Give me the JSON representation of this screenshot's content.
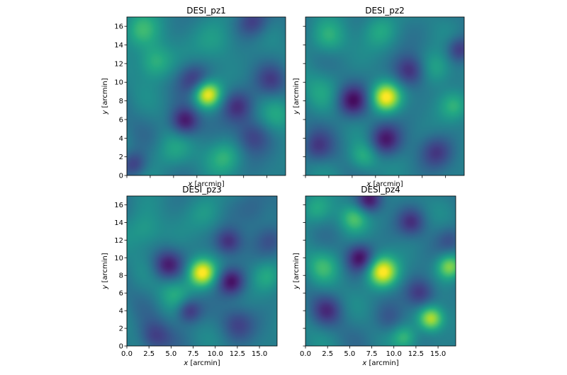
{
  "chart_data": [
    {
      "type": "heatmap",
      "title": "DESI_pz1",
      "xlabel_var": "x",
      "xlabel_unit": " [arcmin]",
      "ylabel_var": "y",
      "ylabel_unit": " [arcmin]",
      "xlim": [
        0,
        17
      ],
      "ylim": [
        0,
        17
      ],
      "xticks": [
        "0.0",
        "2.5",
        "5.0",
        "7.5",
        "10.0",
        "12.5",
        "15.0"
      ],
      "yticks": [
        "0",
        "2",
        "4",
        "6",
        "8",
        "10",
        "12",
        "14",
        "16"
      ],
      "show_xticklabels": false,
      "show_yticklabels": true,
      "colormap": "viridis",
      "features": [
        {
          "x": 8.6,
          "y": 8.7,
          "amp": 1.0,
          "w": 1.0
        },
        {
          "x": 6.2,
          "y": 5.8,
          "amp": -0.85,
          "w": 1.1
        },
        {
          "x": 11.8,
          "y": 7.4,
          "amp": -0.6,
          "w": 1.2
        },
        {
          "x": 13.5,
          "y": 4.2,
          "amp": -0.5,
          "w": 1.3
        },
        {
          "x": 16.2,
          "y": 6.5,
          "amp": 0.3,
          "w": 1.3
        },
        {
          "x": 7.2,
          "y": 10.3,
          "amp": -0.55,
          "w": 1.2
        },
        {
          "x": 3.0,
          "y": 12.2,
          "amp": 0.45,
          "w": 1.3
        },
        {
          "x": 0.8,
          "y": 1.2,
          "amp": -0.6,
          "w": 1.0
        },
        {
          "x": 1.5,
          "y": 15.5,
          "amp": 0.4,
          "w": 1.4
        },
        {
          "x": 13.5,
          "y": 16.5,
          "amp": -0.55,
          "w": 1.2
        },
        {
          "x": 5.0,
          "y": 2.5,
          "amp": 0.3,
          "w": 1.4
        },
        {
          "x": 10.5,
          "y": 2.0,
          "amp": 0.35,
          "w": 1.3
        },
        {
          "x": 15.5,
          "y": 10.2,
          "amp": -0.45,
          "w": 1.2
        },
        {
          "x": 9.5,
          "y": 14.5,
          "amp": 0.25,
          "w": 1.6
        }
      ]
    },
    {
      "type": "heatmap",
      "title": "DESI_pz2",
      "xlabel_var": "x",
      "xlabel_unit": " [arcmin]",
      "ylabel_var": "y",
      "ylabel_unit": " [arcmin]",
      "xlim": [
        0,
        17
      ],
      "ylim": [
        0,
        17
      ],
      "xticks": [
        "0.0",
        "2.5",
        "5.0",
        "7.5",
        "10.0",
        "12.5",
        "15.0"
      ],
      "yticks": [
        "0",
        "2",
        "4",
        "6",
        "8",
        "10",
        "12",
        "14",
        "16"
      ],
      "show_xticklabels": false,
      "show_yticklabels": false,
      "colormap": "viridis",
      "features": [
        {
          "x": 8.6,
          "y": 8.4,
          "amp": 1.0,
          "w": 1.1
        },
        {
          "x": 5.0,
          "y": 8.0,
          "amp": -0.8,
          "w": 1.2
        },
        {
          "x": 8.5,
          "y": 3.8,
          "amp": -0.75,
          "w": 1.2
        },
        {
          "x": 11.2,
          "y": 11.2,
          "amp": -0.7,
          "w": 1.2
        },
        {
          "x": 6.2,
          "y": 2.0,
          "amp": 0.4,
          "w": 1.1
        },
        {
          "x": 14.0,
          "y": 11.5,
          "amp": 0.35,
          "w": 1.3
        },
        {
          "x": 16.0,
          "y": 7.5,
          "amp": 0.35,
          "w": 1.1
        },
        {
          "x": 16.5,
          "y": 13.5,
          "amp": -0.6,
          "w": 1.0
        },
        {
          "x": 14.0,
          "y": 2.5,
          "amp": -0.5,
          "w": 1.2
        },
        {
          "x": 1.2,
          "y": 3.0,
          "amp": -0.5,
          "w": 1.2
        },
        {
          "x": 2.5,
          "y": 14.8,
          "amp": 0.35,
          "w": 1.3
        },
        {
          "x": 8.0,
          "y": 15.5,
          "amp": 0.3,
          "w": 1.3
        },
        {
          "x": 1.5,
          "y": 9.0,
          "amp": 0.2,
          "w": 1.5
        }
      ]
    },
    {
      "type": "heatmap",
      "title": "DESI_pz3",
      "xlabel_var": "x",
      "xlabel_unit": " [arcmin]",
      "ylabel_var": "y",
      "ylabel_unit": " [arcmin]",
      "xlim": [
        0,
        17
      ],
      "ylim": [
        0,
        17
      ],
      "xticks": [
        "0.0",
        "2.5",
        "5.0",
        "7.5",
        "10.0",
        "12.5",
        "15.0"
      ],
      "yticks": [
        "0",
        "2",
        "4",
        "6",
        "8",
        "10",
        "12",
        "14",
        "16"
      ],
      "show_xticklabels": true,
      "show_yticklabels": true,
      "colormap": "viridis",
      "features": [
        {
          "x": 8.5,
          "y": 8.3,
          "amp": 1.0,
          "w": 1.1
        },
        {
          "x": 11.8,
          "y": 7.3,
          "amp": -0.8,
          "w": 1.1
        },
        {
          "x": 11.5,
          "y": 11.8,
          "amp": -0.65,
          "w": 1.1
        },
        {
          "x": 4.6,
          "y": 9.2,
          "amp": -0.7,
          "w": 1.2
        },
        {
          "x": 7.0,
          "y": 4.0,
          "amp": -0.65,
          "w": 1.0
        },
        {
          "x": 3.0,
          "y": 1.0,
          "amp": -0.55,
          "w": 1.3
        },
        {
          "x": 12.5,
          "y": 2.5,
          "amp": -0.45,
          "w": 1.3
        },
        {
          "x": 16.0,
          "y": 8.0,
          "amp": 0.3,
          "w": 1.2
        },
        {
          "x": 16.5,
          "y": 12.0,
          "amp": -0.35,
          "w": 1.2
        },
        {
          "x": 2.0,
          "y": 13.0,
          "amp": 0.3,
          "w": 1.5
        },
        {
          "x": 9.0,
          "y": 15.0,
          "amp": 0.2,
          "w": 1.5
        },
        {
          "x": 5.5,
          "y": 6.0,
          "amp": 0.3,
          "w": 1.3
        },
        {
          "x": 14.5,
          "y": 15.5,
          "amp": -0.3,
          "w": 1.4
        }
      ]
    },
    {
      "type": "heatmap",
      "title": "DESI_pz4",
      "xlabel_var": "x",
      "xlabel_unit": " [arcmin]",
      "ylabel_var": "y",
      "ylabel_unit": " [arcmin]",
      "xlim": [
        0,
        17
      ],
      "ylim": [
        0,
        17
      ],
      "xticks": [
        "0.0",
        "2.5",
        "5.0",
        "7.5",
        "10.0",
        "12.5",
        "15.0"
      ],
      "yticks": [
        "0",
        "2",
        "4",
        "6",
        "8",
        "10",
        "12",
        "14",
        "16"
      ],
      "show_xticklabels": true,
      "show_yticklabels": false,
      "colormap": "viridis",
      "features": [
        {
          "x": 8.7,
          "y": 8.4,
          "amp": 1.0,
          "w": 1.2
        },
        {
          "x": 14.2,
          "y": 3.1,
          "amp": 0.85,
          "w": 1.0
        },
        {
          "x": 16.3,
          "y": 9.0,
          "amp": 0.7,
          "w": 1.0
        },
        {
          "x": 6.2,
          "y": 10.0,
          "amp": -0.8,
          "w": 1.1
        },
        {
          "x": 7.2,
          "y": 16.5,
          "amp": -0.75,
          "w": 1.0
        },
        {
          "x": 13.0,
          "y": 6.0,
          "amp": -0.6,
          "w": 1.2
        },
        {
          "x": 11.2,
          "y": 1.0,
          "amp": 0.4,
          "w": 1.0
        },
        {
          "x": 5.5,
          "y": 14.5,
          "amp": 0.5,
          "w": 1.1
        },
        {
          "x": 12.0,
          "y": 14.0,
          "amp": -0.55,
          "w": 1.1
        },
        {
          "x": 2.0,
          "y": 9.0,
          "amp": 0.35,
          "w": 1.3
        },
        {
          "x": 2.5,
          "y": 4.0,
          "amp": -0.5,
          "w": 1.2
        },
        {
          "x": 9.5,
          "y": 3.0,
          "amp": -0.3,
          "w": 1.2
        },
        {
          "x": 16.5,
          "y": 12.0,
          "amp": -0.35,
          "w": 1.1
        },
        {
          "x": 1.0,
          "y": 15.5,
          "amp": 0.3,
          "w": 1.2
        }
      ]
    }
  ]
}
